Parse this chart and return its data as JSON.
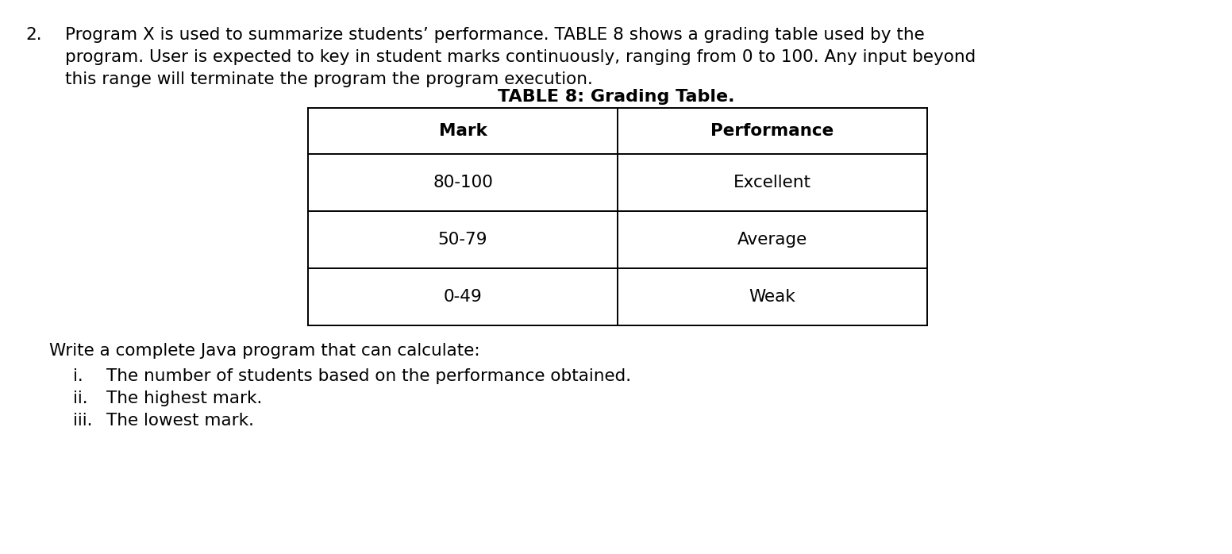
{
  "question_number": "2.",
  "para_lines": [
    "Program X is used to summarize students’ performance. TABLE 8 shows a grading table used by the",
    "program. User is expected to key in student marks continuously, ranging from 0 to 100. Any input beyond",
    "this range will terminate the program the program execution."
  ],
  "table_title": "TABLE 8: Grading Table.",
  "table_headers": [
    "Mark",
    "Performance"
  ],
  "table_rows": [
    [
      "80-100",
      "Excellent"
    ],
    [
      "50-79",
      "Average"
    ],
    [
      "0-49",
      "Weak"
    ]
  ],
  "write_line": "Write a complete Java program that can calculate:",
  "sub_items": [
    [
      "i.",
      "The number of students based on the performance obtained."
    ],
    [
      "ii.",
      "The highest mark."
    ],
    [
      "iii.",
      "The lowest mark."
    ]
  ],
  "bg_color": "#ffffff",
  "text_color": "#000000",
  "font_size_para": 15.5,
  "font_size_table_title": 16,
  "font_size_table_content": 15.5,
  "font_size_sub": 15.5
}
